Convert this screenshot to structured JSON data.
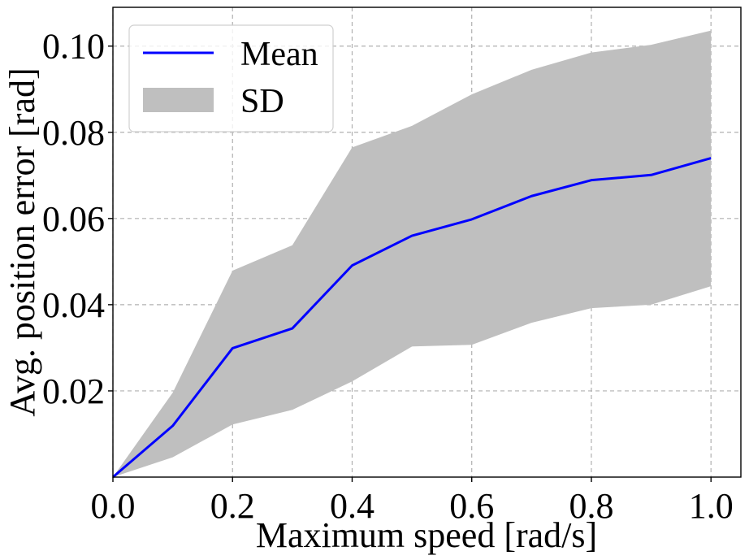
{
  "chart_data": {
    "type": "line",
    "title": "",
    "xlabel": "Maximum speed [rad/s]",
    "ylabel": "Avg. position error [rad]",
    "xlim": [
      0.0,
      1.05
    ],
    "ylim": [
      0.0,
      0.109
    ],
    "grid": true,
    "legend_position": "top-left",
    "xticks": [
      0.0,
      0.2,
      0.4,
      0.6,
      0.8,
      1.0
    ],
    "xtick_labels": [
      "0.0",
      "0.2",
      "0.4",
      "0.6",
      "0.8",
      "1.0"
    ],
    "yticks": [
      0.02,
      0.04,
      0.06,
      0.08,
      0.1
    ],
    "ytick_labels": [
      "0.02",
      "0.04",
      "0.06",
      "0.08",
      "0.10"
    ],
    "x": [
      0.0,
      0.1,
      0.2,
      0.3,
      0.4,
      0.5,
      0.6,
      0.7,
      0.8,
      0.9,
      1.0
    ],
    "series": [
      {
        "name": "Mean",
        "kind": "line",
        "color": "#0000ff",
        "values": [
          0.0,
          0.0119,
          0.0299,
          0.0345,
          0.0491,
          0.056,
          0.0598,
          0.0652,
          0.0689,
          0.0701,
          0.074
        ]
      },
      {
        "name": "SD",
        "kind": "band",
        "color": "#bfbfbf",
        "lower": [
          0.0,
          0.0046,
          0.0122,
          0.0156,
          0.0222,
          0.0303,
          0.0307,
          0.0358,
          0.0392,
          0.04,
          0.0443
        ],
        "upper": [
          0.0,
          0.0196,
          0.0479,
          0.0538,
          0.0765,
          0.0815,
          0.0888,
          0.0945,
          0.0985,
          0.1003,
          0.1036
        ]
      }
    ]
  }
}
